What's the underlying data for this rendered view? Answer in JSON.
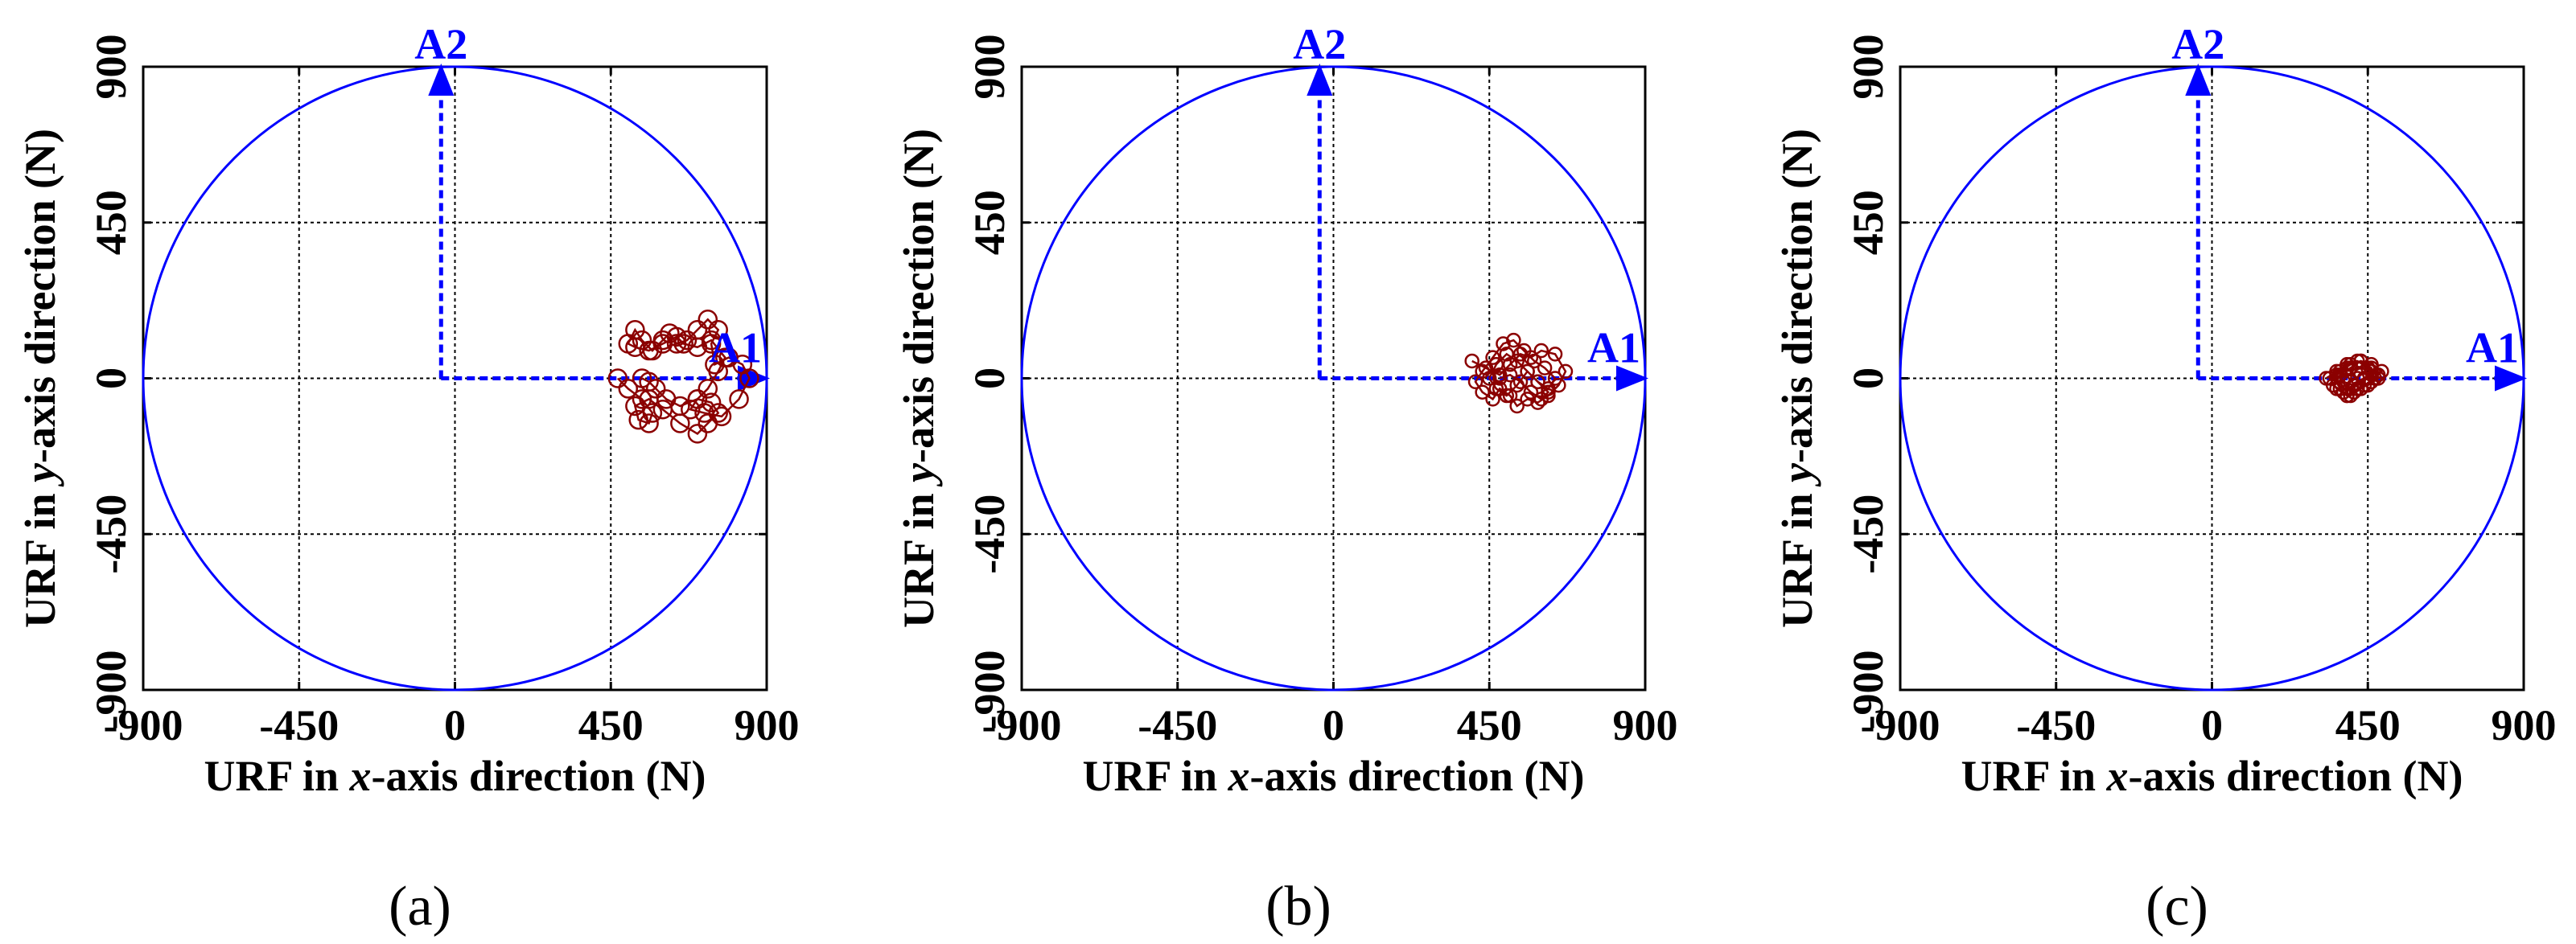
{
  "chart_data": [
    {
      "type": "scatter",
      "caption": "(a)",
      "xlabel": [
        "URF in ",
        "x",
        "-axis direction (N)"
      ],
      "ylabel": [
        "URF in ",
        "y",
        "-axis direction (N)"
      ],
      "xlim": [
        -900,
        900
      ],
      "ylim": [
        -900,
        900
      ],
      "xticks": [
        -900,
        -450,
        0,
        450,
        900
      ],
      "yticks": [
        -900,
        -450,
        0,
        450,
        900
      ],
      "grid": true,
      "circle_radius": 900,
      "axis_A1": {
        "label": "A1",
        "from": [
          -40,
          0
        ],
        "to": [
          900,
          0
        ]
      },
      "axis_A2": {
        "label": "A2",
        "from": [
          -40,
          0
        ],
        "to": [
          -40,
          900
        ]
      },
      "series": [
        {
          "marker": "circle",
          "color": "#8b0000",
          "x": [
            470,
            500,
            540,
            570,
            560,
            530,
            520,
            560,
            600,
            650,
            700,
            730,
            760,
            740,
            700,
            680,
            720,
            770,
            820,
            850,
            830,
            790,
            750,
            740,
            760,
            730,
            700,
            670,
            640,
            620,
            600,
            570,
            540,
            520,
            500,
            520,
            560,
            600,
            640,
            660,
            700,
            740,
            780,
            760,
            730,
            700,
            650,
            610,
            580,
            560,
            540
          ],
          "y": [
            0,
            -30,
            -60,
            -100,
            -130,
            -120,
            -80,
            -60,
            -90,
            -130,
            -160,
            -130,
            -100,
            -70,
            -60,
            -90,
            -100,
            -110,
            -60,
            0,
            40,
            60,
            40,
            100,
            140,
            170,
            140,
            110,
            100,
            130,
            110,
            80,
            110,
            140,
            100,
            90,
            80,
            100,
            120,
            100,
            90,
            110,
            60,
            20,
            -30,
            -60,
            -80,
            -60,
            -30,
            -10,
            0
          ]
        }
      ]
    },
    {
      "type": "scatter",
      "caption": "(b)",
      "xlabel": [
        "URF in ",
        "x",
        "-axis direction (N)"
      ],
      "ylabel": [
        "URF in ",
        "y",
        "-axis direction (N)"
      ],
      "xlim": [
        -900,
        900
      ],
      "ylim": [
        -900,
        900
      ],
      "xticks": [
        -900,
        -450,
        0,
        450,
        900
      ],
      "yticks": [
        -900,
        -450,
        0,
        450,
        900
      ],
      "grid": true,
      "circle_radius": 900,
      "axis_A1": {
        "label": "A1",
        "from": [
          -40,
          0
        ],
        "to": [
          900,
          0
        ]
      },
      "axis_A2": {
        "label": "A2",
        "from": [
          -40,
          0
        ],
        "to": [
          -40,
          900
        ]
      },
      "series": [
        {
          "marker": "circle",
          "color": "#8b0000",
          "x": [
            400,
            440,
            480,
            510,
            540,
            570,
            600,
            640,
            670,
            650,
            620,
            590,
            560,
            530,
            510,
            480,
            460,
            430,
            410,
            430,
            460,
            490,
            520,
            550,
            580,
            610,
            640,
            620,
            590,
            560,
            530,
            500,
            470,
            450,
            470,
            500,
            530,
            560,
            590,
            620,
            600,
            570,
            540,
            510,
            480
          ],
          "y": [
            50,
            30,
            10,
            40,
            70,
            60,
            80,
            70,
            20,
            -20,
            -50,
            -70,
            -60,
            -80,
            -50,
            -30,
            -60,
            -40,
            -10,
            20,
            60,
            100,
            110,
            80,
            50,
            30,
            0,
            -30,
            -10,
            20,
            -20,
            -50,
            -30,
            0,
            40,
            70,
            50,
            20,
            -10,
            -40,
            -60,
            -40,
            -10,
            10,
            0
          ]
        }
      ]
    },
    {
      "type": "scatter",
      "caption": "(c)",
      "xlabel": [
        "URF in ",
        "x",
        "-axis direction (N)"
      ],
      "ylabel": [
        "URF in ",
        "y",
        "-axis direction (N)"
      ],
      "xlim": [
        -900,
        900
      ],
      "ylim": [
        -900,
        900
      ],
      "xticks": [
        -900,
        -450,
        0,
        450,
        900
      ],
      "yticks": [
        -900,
        -450,
        0,
        450,
        900
      ],
      "grid": true,
      "circle_radius": 900,
      "axis_A1": {
        "label": "A1",
        "from": [
          -40,
          0
        ],
        "to": [
          900,
          0
        ]
      },
      "axis_A2": {
        "label": "A2",
        "from": [
          -40,
          0
        ],
        "to": [
          -40,
          900
        ]
      },
      "series": [
        {
          "marker": "circle",
          "color": "#8b0000",
          "x": [
            330,
            360,
            390,
            420,
            450,
            480,
            460,
            430,
            400,
            380,
            350,
            370,
            400,
            430,
            460,
            490,
            470,
            440,
            410,
            390,
            360,
            340,
            370,
            400,
            430,
            460,
            480,
            450,
            420,
            390,
            370,
            400,
            430,
            460,
            440,
            410,
            380,
            360,
            390,
            420
          ],
          "y": [
            0,
            20,
            40,
            50,
            30,
            10,
            -10,
            -30,
            -50,
            -40,
            -20,
            10,
            30,
            50,
            40,
            20,
            0,
            -20,
            -40,
            -50,
            -30,
            0,
            20,
            40,
            50,
            30,
            0,
            -20,
            -30,
            -50,
            -30,
            -10,
            10,
            20,
            0,
            -20,
            -10,
            10,
            30,
            0
          ]
        }
      ]
    }
  ]
}
